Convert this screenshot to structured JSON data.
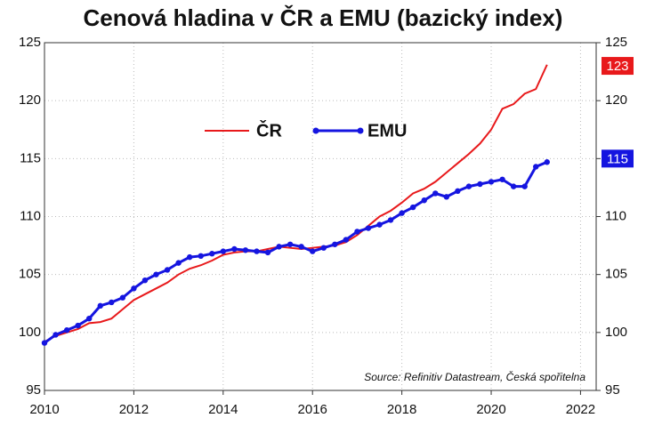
{
  "chart_data": {
    "type": "line",
    "title": "Cenová hladina v ČR a EMU (bazický index)",
    "x": [
      2010,
      2010.25,
      2010.5,
      2010.75,
      2011,
      2011.25,
      2011.5,
      2011.75,
      2012,
      2012.25,
      2012.5,
      2012.75,
      2013,
      2013.25,
      2013.5,
      2013.75,
      2014,
      2014.25,
      2014.5,
      2014.75,
      2015,
      2015.25,
      2015.5,
      2015.75,
      2016,
      2016.25,
      2016.5,
      2016.75,
      2017,
      2017.25,
      2017.5,
      2017.75,
      2018,
      2018.25,
      2018.5,
      2018.75,
      2019,
      2019.25,
      2019.5,
      2019.75,
      2020,
      2020.25,
      2020.5,
      2020.75,
      2021,
      2021.25
    ],
    "series": [
      {
        "name": "ČR",
        "color": "#e8191b",
        "markers": false,
        "end_label": 123,
        "values": [
          99.2,
          99.7,
          100.0,
          100.3,
          100.8,
          100.9,
          101.2,
          102.0,
          102.8,
          103.3,
          103.8,
          104.3,
          105.0,
          105.5,
          105.8,
          106.2,
          106.7,
          106.9,
          107.0,
          107.0,
          107.2,
          107.4,
          107.3,
          107.2,
          107.3,
          107.4,
          107.5,
          107.8,
          108.4,
          109.2,
          110.0,
          110.5,
          111.2,
          112.0,
          112.4,
          113.0,
          113.8,
          114.6,
          115.4,
          116.3,
          117.5,
          119.3,
          119.7,
          120.6,
          121.0,
          123.1
        ]
      },
      {
        "name": "EMU",
        "color": "#1515e0",
        "markers": true,
        "end_label": 115,
        "values": [
          99.1,
          99.8,
          100.2,
          100.6,
          101.2,
          102.3,
          102.6,
          103.0,
          103.8,
          104.5,
          105.0,
          105.4,
          106.0,
          106.5,
          106.6,
          106.8,
          107.0,
          107.2,
          107.1,
          107.0,
          106.9,
          107.4,
          107.6,
          107.4,
          107.0,
          107.3,
          107.6,
          108.0,
          108.7,
          109.0,
          109.3,
          109.7,
          110.3,
          110.8,
          111.4,
          112.0,
          111.7,
          112.2,
          112.6,
          112.8,
          113.0,
          113.2,
          112.6,
          112.6,
          114.3,
          114.7
        ]
      }
    ],
    "xlim": [
      2010,
      2022.35
    ],
    "xticks": [
      2010,
      2012,
      2014,
      2016,
      2018,
      2020,
      2022
    ],
    "ylim": [
      95,
      125
    ],
    "yticks": [
      95,
      100,
      105,
      110,
      115,
      120,
      125
    ],
    "grid": true,
    "legend": "upper center",
    "annotation": "Source: Refinitiv Datastream, Česká spořitelna"
  }
}
